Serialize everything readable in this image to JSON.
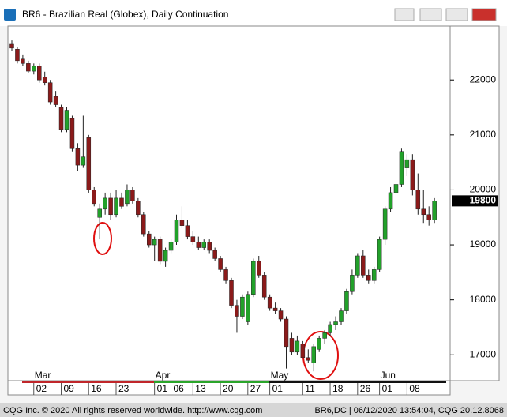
{
  "window_title": "BR6 - Brazilian Real (Globex), Daily Continuation",
  "footer": {
    "left": "CQG Inc. © 2020 All rights reserved worldwide. http://www.cqg.com",
    "right": "BR6,DC | 06/12/2020 13:54:04, CQG 20.12.8068"
  },
  "chart_data": {
    "type": "candlestick",
    "categories": [
      null,
      null,
      null,
      null,
      null,
      "02",
      null,
      null,
      null,
      null,
      "09",
      null,
      null,
      null,
      null,
      "16",
      null,
      null,
      null,
      null,
      "23",
      null,
      null,
      null,
      null,
      null,
      null,
      "01",
      null,
      null,
      "06",
      null,
      null,
      null,
      "13",
      null,
      null,
      null,
      null,
      "20",
      null,
      null,
      null,
      null,
      "27",
      null,
      null,
      null,
      "01",
      null,
      null,
      null,
      null,
      null,
      "11",
      null,
      null,
      null,
      null,
      "18",
      null,
      null,
      null,
      null,
      "26",
      null,
      null,
      null,
      "01",
      null,
      null,
      null,
      null,
      "08",
      null,
      null,
      null,
      null
    ],
    "months": [
      "Mar",
      "Apr",
      "May",
      "Jun"
    ],
    "open": [
      22650,
      22560,
      22380,
      22300,
      22160,
      22250,
      22050,
      21950,
      21700,
      21500,
      21100,
      21300,
      20750,
      20450,
      20950,
      20000,
      19500,
      19650,
      19850,
      19550,
      19850,
      19750,
      20000,
      19800,
      19550,
      19200,
      19000,
      19100,
      18700,
      18900,
      19050,
      19450,
      19350,
      19150,
      19050,
      18950,
      19050,
      18900,
      18750,
      18550,
      18350,
      17900,
      17700,
      17600,
      18100,
      18700,
      18450,
      18050,
      17850,
      17800,
      17650,
      17300,
      17050,
      17200,
      16950,
      16850,
      17100,
      17300,
      17400,
      17550,
      17600,
      17800,
      18150,
      18450,
      18800,
      18450,
      18350,
      18550,
      19100,
      19650,
      19950,
      20100,
      20400,
      20550,
      20000,
      19650,
      19550,
      19450
    ],
    "high": [
      22720,
      22600,
      22450,
      22350,
      22300,
      22300,
      22150,
      22000,
      21800,
      21550,
      21500,
      21350,
      20850,
      21350,
      21000,
      20050,
      19750,
      19950,
      19950,
      20000,
      19950,
      20100,
      20050,
      19850,
      19600,
      19250,
      19150,
      19150,
      18950,
      19100,
      19550,
      19700,
      19450,
      19250,
      19150,
      19100,
      19100,
      18950,
      18800,
      18600,
      18400,
      18000,
      18100,
      18150,
      18750,
      18800,
      18500,
      18100,
      17950,
      17850,
      17700,
      17400,
      17350,
      17250,
      17100,
      17200,
      17350,
      17450,
      17600,
      17700,
      17850,
      18200,
      18550,
      18850,
      18900,
      18550,
      18600,
      19150,
      19700,
      20050,
      20150,
      20750,
      20650,
      20650,
      20300,
      20000,
      19700,
      19850
    ],
    "low": [
      22520,
      22300,
      22250,
      22120,
      22100,
      21950,
      21900,
      21550,
      21500,
      21050,
      21050,
      20700,
      20350,
      20400,
      19950,
      19700,
      19100,
      19550,
      19450,
      19500,
      19650,
      19700,
      19750,
      19500,
      19150,
      18950,
      18700,
      18650,
      18600,
      18850,
      19000,
      19300,
      19100,
      19000,
      18900,
      18900,
      18850,
      18700,
      18500,
      18300,
      17850,
      17400,
      17650,
      17550,
      18050,
      18400,
      18000,
      17800,
      17750,
      17600,
      16750,
      17000,
      17000,
      16950,
      16850,
      16700,
      17050,
      17200,
      17350,
      17450,
      17550,
      17750,
      18100,
      18400,
      18400,
      18300,
      18300,
      18500,
      19000,
      19600,
      19750,
      20050,
      20250,
      19900,
      19550,
      19400,
      19350,
      19400
    ],
    "close": [
      22580,
      22350,
      22300,
      22160,
      22250,
      22000,
      21950,
      21600,
      21550,
      21100,
      21450,
      20750,
      20450,
      20600,
      20000,
      19750,
      19650,
      19850,
      19550,
      19850,
      19700,
      20000,
      19800,
      19550,
      19200,
      19000,
      19100,
      18700,
      18900,
      19050,
      19450,
      19350,
      19150,
      19050,
      18950,
      19050,
      18900,
      18750,
      18550,
      18350,
      17900,
      17700,
      18050,
      18100,
      18700,
      18450,
      18050,
      17850,
      17800,
      17650,
      17150,
      17050,
      17250,
      16950,
      16900,
      17150,
      17300,
      17400,
      17550,
      17600,
      17800,
      18150,
      18450,
      18800,
      18450,
      18350,
      18550,
      19100,
      19650,
      19950,
      20100,
      20700,
      20550,
      20000,
      19650,
      19550,
      19450,
      19800
    ],
    "up_color": "#22a12a",
    "down_color": "#8b1a1a",
    "ylim": [
      16530,
      22980
    ],
    "yticks": [
      17000,
      18000,
      19000,
      20000,
      21000,
      22000
    ]
  }
}
